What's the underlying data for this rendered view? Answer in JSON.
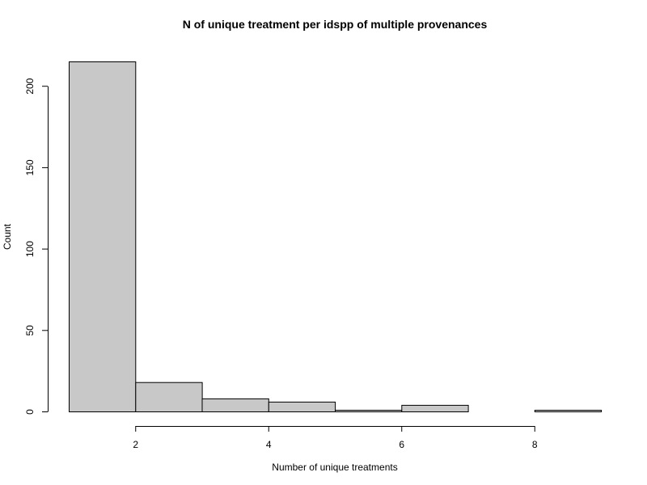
{
  "chart_data": {
    "type": "bar",
    "title": "N of unique treatment per idspp of multiple provenances",
    "xlabel": "Number of unique treatments",
    "ylabel": "Count",
    "bins": [
      {
        "start": 1,
        "end": 2,
        "count": 215
      },
      {
        "start": 2,
        "end": 3,
        "count": 18
      },
      {
        "start": 3,
        "end": 4,
        "count": 8
      },
      {
        "start": 4,
        "end": 5,
        "count": 6
      },
      {
        "start": 5,
        "end": 6,
        "count": 1
      },
      {
        "start": 6,
        "end": 7,
        "count": 4
      },
      {
        "start": 7,
        "end": 8,
        "count": 0
      },
      {
        "start": 8,
        "end": 9,
        "count": 1
      }
    ],
    "xlim": [
      1,
      9
    ],
    "ylim": [
      0,
      215
    ],
    "x_ticks": [
      2,
      4,
      6,
      8
    ],
    "y_ticks": [
      0,
      50,
      100,
      150,
      200
    ],
    "bar_color": "#c8c8c8",
    "bar_border_color": "#000000",
    "grid": false,
    "legend": "none"
  }
}
